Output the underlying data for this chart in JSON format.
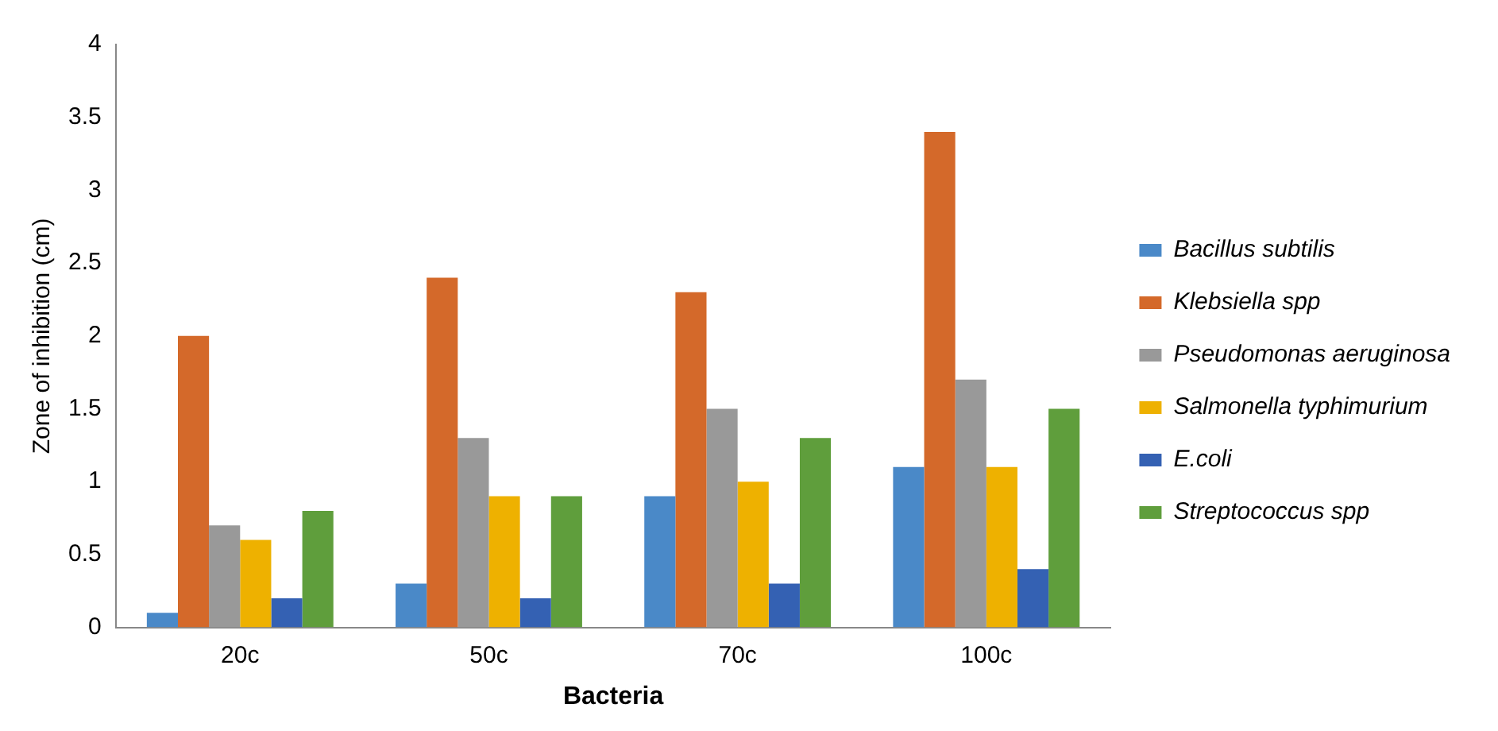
{
  "chart_data": {
    "type": "bar",
    "xlabel": "Bacteria",
    "ylabel": "Zone of inhibition (cm)",
    "categories": [
      "20c",
      "50c",
      "70c",
      "100c"
    ],
    "series": [
      {
        "name": "Bacillus subtilis",
        "color": "#4a89c8",
        "values": [
          0.1,
          0.3,
          0.9,
          1.1
        ]
      },
      {
        "name": "Klebsiella spp",
        "color": "#d4692a",
        "values": [
          2.0,
          2.4,
          2.3,
          3.4
        ]
      },
      {
        "name": "Pseudomonas aeruginosa",
        "color": "#999999",
        "values": [
          0.7,
          1.3,
          1.5,
          1.7
        ]
      },
      {
        "name": "Salmonella typhimurium",
        "color": "#eeb100",
        "values": [
          0.6,
          0.9,
          1.0,
          1.1
        ]
      },
      {
        "name": "E.coli",
        "color": "#3461b3",
        "values": [
          0.2,
          0.2,
          0.3,
          0.4
        ]
      },
      {
        "name": "Streptococcus spp",
        "color": "#5f9e3c",
        "values": [
          0.8,
          0.9,
          1.3,
          1.5
        ]
      }
    ],
    "ylim": [
      0,
      4
    ],
    "yticks": [
      0,
      0.5,
      1,
      1.5,
      2,
      2.5,
      3,
      3.5,
      4
    ],
    "grid": false,
    "legend": "right"
  }
}
